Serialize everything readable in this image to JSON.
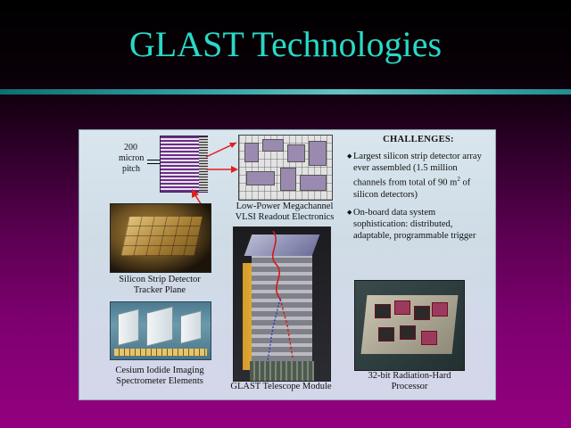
{
  "slide": {
    "title": "GLAST Technologies"
  },
  "figure": {
    "pitch_label": [
      "200",
      "micron",
      "pitch"
    ],
    "captions": {
      "vlsi": [
        "Low-Power Megachannel",
        "VLSI Readout Electronics"
      ],
      "tracker": [
        "Silicon Strip Detector",
        "Tracker Plane"
      ],
      "telescope": [
        "GLAST Telescope Module"
      ],
      "csi": [
        "Cesium Iodide Imaging",
        "Spectrometer Elements"
      ],
      "cpu": [
        "32-bit Radiation-Hard",
        "Processor"
      ]
    },
    "challenges": {
      "heading": "CHALLENGES:",
      "items": [
        {
          "text_before": "Largest silicon strip detector array ever assembled (1.5 million channels from total of 90 m",
          "superscript": "2",
          "text_after": " of silicon detectors)"
        },
        {
          "text_before": "On-board data system sophistication: distributed, adaptable, programmable trigger",
          "superscript": "",
          "text_after": ""
        }
      ]
    },
    "images": [
      {
        "name": "silicon-strip-closeup",
        "icon": "strip-detector-image"
      },
      {
        "name": "vlsi-readout",
        "icon": "circuit-layout-image"
      },
      {
        "name": "tracker-plane",
        "icon": "tracker-plane-photo"
      },
      {
        "name": "telescope-module",
        "icon": "telescope-module-cutaway"
      },
      {
        "name": "csi-elements",
        "icon": "crystal-bars-photo"
      },
      {
        "name": "processor-board",
        "icon": "processor-board-photo"
      }
    ],
    "colors": {
      "title": "#2ad8c6",
      "divider": "#3aa7ab",
      "arrow": "#e02020",
      "panel_bg": "#d6e2ea"
    }
  }
}
